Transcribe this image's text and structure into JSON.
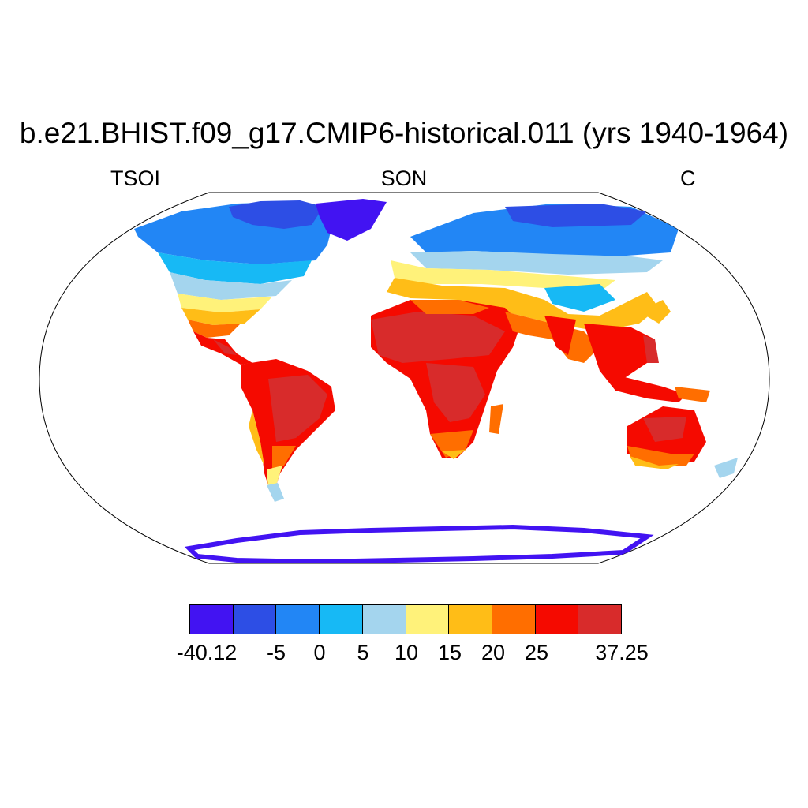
{
  "title": "b.e21.BHIST.f09_g17.CMIP6-historical.011 (yrs 1940-1964)",
  "left_label": "TSOI",
  "center_label": "SON",
  "right_label": "C",
  "colorbar": {
    "colors": [
      "#4213f2",
      "#2d4ee5",
      "#2286f5",
      "#17b9f5",
      "#a4d5ee",
      "#fff27a",
      "#ffbd17",
      "#ff6e00",
      "#f50a00",
      "#d82b2b"
    ],
    "labels": [
      "-40.12",
      "-5",
      "0",
      "5",
      "10",
      "15",
      "20",
      "25",
      "37.25"
    ]
  }
}
